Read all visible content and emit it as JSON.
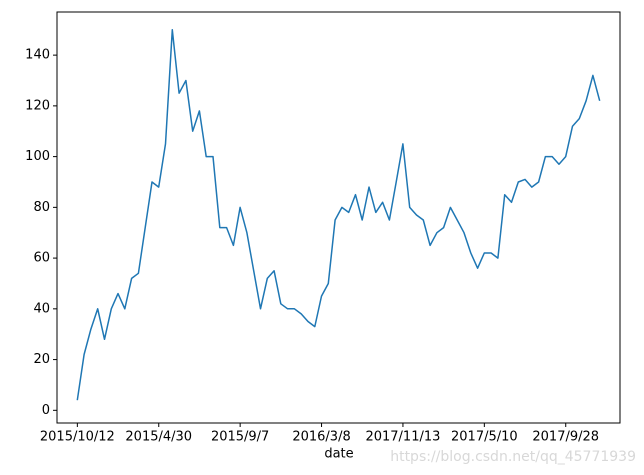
{
  "chart_data": {
    "type": "line",
    "x_label": "date",
    "categories": [
      "2015/10/12",
      null,
      null,
      null,
      null,
      null,
      null,
      null,
      null,
      null,
      null,
      null,
      "2015/4/30",
      null,
      null,
      null,
      null,
      null,
      null,
      null,
      null,
      null,
      null,
      null,
      "2015/9/7",
      null,
      null,
      null,
      null,
      null,
      null,
      null,
      null,
      null,
      null,
      null,
      "2016/3/8",
      null,
      null,
      null,
      null,
      null,
      null,
      null,
      null,
      null,
      null,
      null,
      "2017/11/13",
      null,
      null,
      null,
      null,
      null,
      null,
      null,
      null,
      null,
      null,
      null,
      "2017/5/10",
      null,
      null,
      null,
      null,
      null,
      null,
      null,
      null,
      null,
      null,
      null,
      "2017/9/28",
      null,
      null,
      null,
      null,
      null
    ],
    "series": [
      {
        "color": "#1f77b4",
        "values": [
          4,
          22,
          32,
          40,
          28,
          40,
          46,
          40,
          52,
          54,
          72,
          90,
          88,
          105,
          150,
          125,
          130,
          110,
          118,
          100,
          100,
          72,
          72,
          65,
          80,
          70,
          55,
          40,
          52,
          55,
          42,
          40,
          40,
          38,
          35,
          33,
          45,
          50,
          75,
          80,
          78,
          85,
          75,
          88,
          78,
          82,
          75,
          90,
          105,
          80,
          77,
          75,
          65,
          70,
          72,
          80,
          75,
          70,
          62,
          56,
          62,
          62,
          60,
          85,
          82,
          90,
          91,
          88,
          90,
          100,
          100,
          97,
          100,
          112,
          115,
          122,
          132,
          122
        ]
      }
    ],
    "ylim": [
      -5,
      157
    ],
    "yticks": [
      0,
      20,
      40,
      60,
      80,
      100,
      120,
      140
    ],
    "xlim": [
      -3,
      80
    ]
  },
  "watermark": "https://blog.csdn.net/qq_45771939"
}
